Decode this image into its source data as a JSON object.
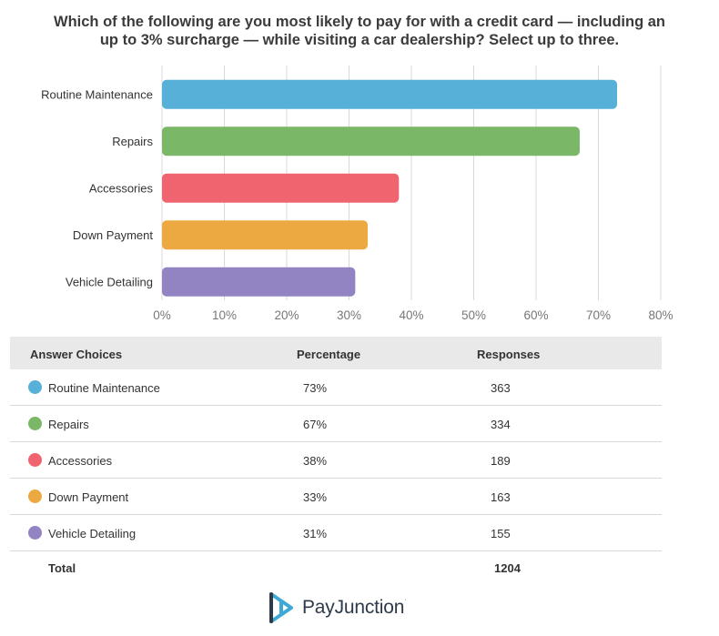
{
  "title_lines": [
    "Which of the following are you most likely to pay for with a credit card — including an",
    "up to 3% surcharge — while visiting a car dealership? Select up to three."
  ],
  "chart_data": {
    "type": "bar",
    "orientation": "horizontal",
    "categories": [
      "Routine Maintenance",
      "Repairs",
      "Accessories",
      "Down Payment",
      "Vehicle Detailing"
    ],
    "values": [
      73,
      67,
      38,
      33,
      31
    ],
    "colors": [
      "#56b0d7",
      "#7ab766",
      "#f0646f",
      "#eda941",
      "#9284c3"
    ],
    "xlim": [
      0,
      80
    ],
    "xticks": [
      0,
      10,
      20,
      30,
      40,
      50,
      60,
      70,
      80
    ],
    "xtick_labels": [
      "0%",
      "10%",
      "20%",
      "30%",
      "40%",
      "50%",
      "60%",
      "70%",
      "80%"
    ],
    "grid": true
  },
  "table": {
    "headers": [
      "Answer Choices",
      "Percentage",
      "Responses"
    ],
    "rows": [
      {
        "choice": "Routine Maintenance",
        "percentage": "73%",
        "responses": "363",
        "color": "#56b0d7"
      },
      {
        "choice": "Repairs",
        "percentage": "67%",
        "responses": "334",
        "color": "#7ab766"
      },
      {
        "choice": "Accessories",
        "percentage": "38%",
        "responses": "189",
        "color": "#f0646f"
      },
      {
        "choice": "Down Payment",
        "percentage": "33%",
        "responses": "163",
        "color": "#eda941"
      },
      {
        "choice": "Vehicle Detailing",
        "percentage": "31%",
        "responses": "155",
        "color": "#9284c3"
      }
    ],
    "total_label": "Total",
    "total_value": "1204"
  },
  "logo": {
    "text": "PayJunction",
    "mark": "·",
    "icon": "payjunction-logo-icon"
  }
}
